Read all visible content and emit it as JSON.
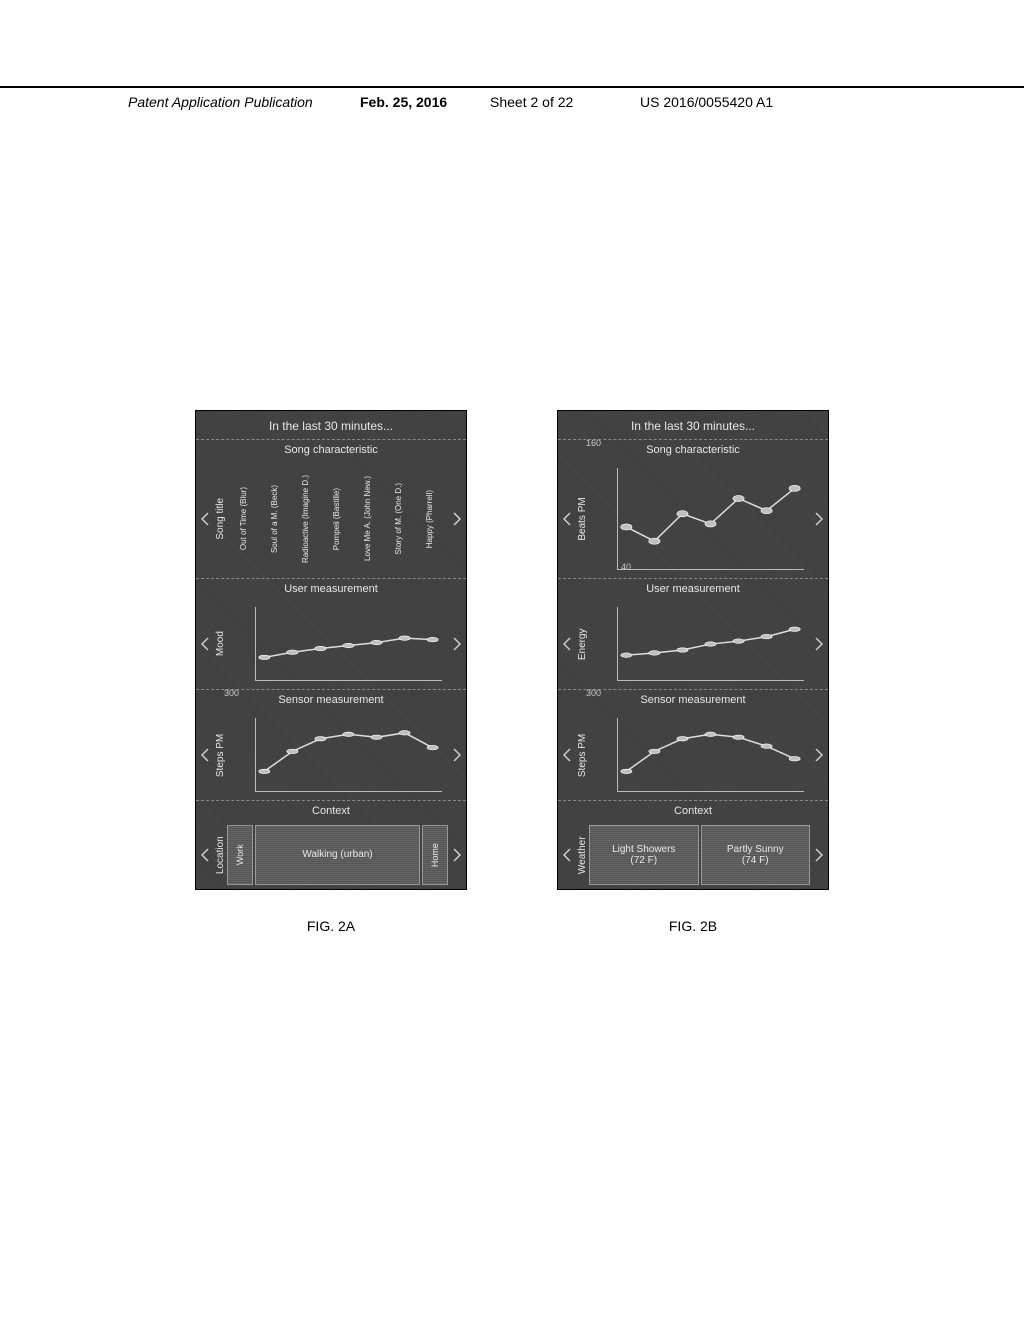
{
  "header": {
    "left": "Patent Application Publication",
    "date": "Feb. 25, 2016",
    "sheet": "Sheet 2 of 22",
    "pubno": "US 2016/0055420 A1"
  },
  "figA": {
    "label": "FIG. 2A",
    "title": "In the last 30 minutes...",
    "section1": {
      "heading": "Song characteristic",
      "vlabel": "Song title",
      "songs": [
        "Out of Time\n(Blur)",
        "Soul of a M.\n(Beck)",
        "Radioactive\n(Imagine D.)",
        "Pompeii\n(Bastille)",
        "Love Me A.\n(John New.)",
        "Story of M.\n(One D.)",
        "Happy\n(Pharrell)"
      ]
    },
    "section2": {
      "heading": "User measurement",
      "vlabel": "Mood",
      "points": [
        [
          5,
          68
        ],
        [
          20,
          61
        ],
        [
          35,
          56
        ],
        [
          50,
          52
        ],
        [
          65,
          48
        ],
        [
          80,
          42
        ],
        [
          95,
          44
        ]
      ]
    },
    "section3": {
      "heading": "Sensor measurement",
      "vlabel": "Steps PM",
      "axis_max": "300",
      "points": [
        [
          5,
          72
        ],
        [
          20,
          45
        ],
        [
          35,
          28
        ],
        [
          50,
          22
        ],
        [
          65,
          26
        ],
        [
          80,
          20
        ],
        [
          95,
          40
        ]
      ]
    },
    "section4": {
      "heading": "Context",
      "vlabel": "Location",
      "seg1": "Work",
      "seg_main": "Walking (urban)",
      "seg2": "Home"
    }
  },
  "figB": {
    "label": "FIG. 2B",
    "title": "In the last 30 minutes...",
    "section1": {
      "heading": "Song characteristic",
      "vlabel": "Beats PM",
      "axis_max": "160",
      "axis_min": "40",
      "points": [
        [
          5,
          58
        ],
        [
          20,
          72
        ],
        [
          35,
          45
        ],
        [
          50,
          55
        ],
        [
          65,
          30
        ],
        [
          80,
          42
        ],
        [
          95,
          20
        ]
      ]
    },
    "section2": {
      "heading": "User measurement",
      "vlabel": "Energy",
      "points": [
        [
          5,
          65
        ],
        [
          20,
          62
        ],
        [
          35,
          58
        ],
        [
          50,
          50
        ],
        [
          65,
          46
        ],
        [
          80,
          40
        ],
        [
          95,
          30
        ]
      ]
    },
    "section3": {
      "heading": "Sensor measurement",
      "vlabel": "Steps PM",
      "axis_max": "300",
      "points": [
        [
          5,
          72
        ],
        [
          20,
          45
        ],
        [
          35,
          28
        ],
        [
          50,
          22
        ],
        [
          65,
          26
        ],
        [
          80,
          38
        ],
        [
          95,
          55
        ]
      ]
    },
    "section4": {
      "heading": "Context",
      "vlabel": "Weather",
      "seg_a": "Light Showers\n(72 F)",
      "seg_b": "Partly Sunny\n(74 F)"
    }
  },
  "colors": {
    "line": "#dddddd",
    "marker": "#bfbfbf"
  }
}
